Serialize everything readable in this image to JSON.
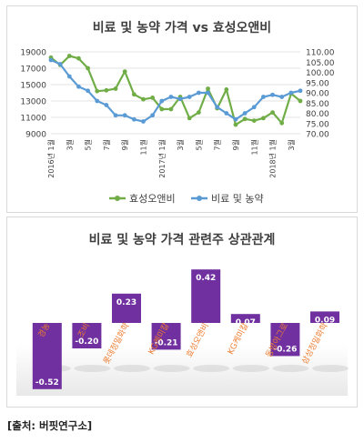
{
  "source_note": "[출처: 버핏연구소]",
  "chart_data": [
    {
      "type": "line",
      "title": "비료 및 농약 가격 vs 효성오앤비",
      "x_ticks": [
        "2016년 1월",
        "3월",
        "5월",
        "7월",
        "9월",
        "11월",
        "2017년 1월",
        "3월",
        "5월",
        "7월",
        "9월",
        "11월",
        "2018년 1월",
        "3월"
      ],
      "y_left": {
        "min": 9000,
        "max": 19000,
        "ticks": [
          "9000",
          "11000",
          "13000",
          "15000",
          "17000",
          "19000"
        ]
      },
      "y_right": {
        "min": 70,
        "max": 110,
        "ticks": [
          "70.00",
          "75.00",
          "80.00",
          "85.00",
          "90.00",
          "95.00",
          "100.00",
          "105.00",
          "110.00"
        ]
      },
      "series": [
        {
          "name": "효성오앤비",
          "axis": "left",
          "color": "#70ad47",
          "values": [
            18300,
            17400,
            18500,
            18200,
            17000,
            14200,
            14300,
            14500,
            16600,
            13800,
            13200,
            13400,
            12000,
            12000,
            13500,
            10900,
            11600,
            14500,
            12100,
            14400,
            10100,
            10800,
            10600,
            10900,
            11600,
            10300,
            13900,
            13000
          ]
        },
        {
          "name": "비료 및 농약",
          "axis": "right",
          "color": "#5b9bd5",
          "values": [
            106,
            104,
            98,
            93,
            91,
            86,
            84,
            79,
            79,
            77,
            76,
            79,
            86,
            88,
            87,
            88,
            90,
            90,
            83,
            80,
            77,
            80,
            83,
            88,
            89,
            88,
            90,
            91
          ]
        }
      ],
      "legend_position": "bottom"
    },
    {
      "type": "bar",
      "title": "비료 및 농약 가격 관련주 상관관계",
      "categories": [
        "경농",
        "조비",
        "롯데정밀화학",
        "KG케미칼",
        "효성오앤비",
        "KG케미칼",
        "동방아그로",
        "삼성정밀화학"
      ],
      "values": [
        -0.52,
        -0.2,
        0.23,
        -0.21,
        0.42,
        0.07,
        -0.26,
        0.09
      ],
      "value_labels": [
        "-0.52",
        "-0.20",
        "0.23",
        "-0.21",
        "0.42",
        "0.07",
        "-0.26",
        "0.09"
      ],
      "bar_color": "#7030a0",
      "label_color": "#ed7d31"
    }
  ]
}
